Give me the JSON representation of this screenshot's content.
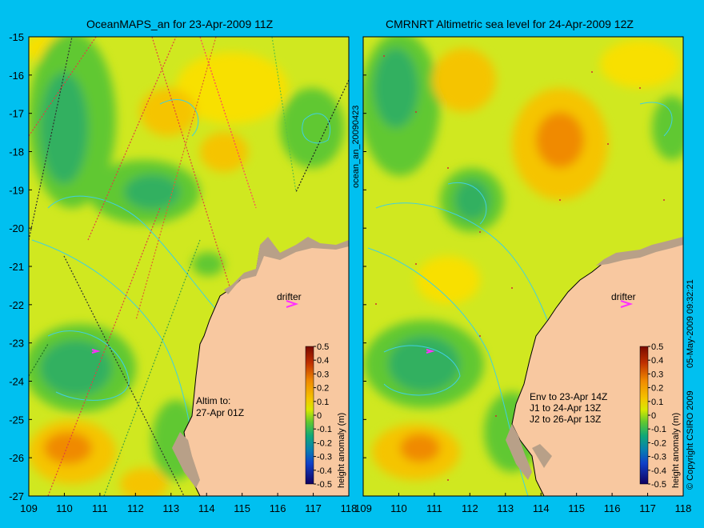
{
  "panels": [
    {
      "title": "OceanMAPS_an for 23-Apr-2009 11Z",
      "side_label": "ocean_an_20090423",
      "annotation": [
        "Altim to:",
        "27-Apr 01Z"
      ],
      "drifter_label": "drifter"
    },
    {
      "title": "CMRNRT Altimetric sea level  for 24-Apr-2009 12Z",
      "side_label": "05-May-2009 09:32:21",
      "annotation": [
        "Env to 23-Apr 14Z",
        "J1 to 24-Apr 13Z",
        "J2 to 26-Apr 13Z"
      ],
      "drifter_label": "drifter"
    }
  ],
  "copyright": "© Copyright CSIRO 2009",
  "colorbar": {
    "label": "height anomaly (m)",
    "ticks": [
      "0.5",
      "0.4",
      "0.3",
      "0.2",
      "0.1",
      "0",
      "-0.1",
      "-0.2",
      "-0.3",
      "-0.4",
      "-0.5"
    ],
    "colors": [
      "#7a0a00",
      "#b02800",
      "#e05000",
      "#f08a00",
      "#f5c400",
      "#d8e800",
      "#90d820",
      "#40c040",
      "#10a878",
      "#0880b0",
      "#1040c8",
      "#202090",
      "#100060"
    ]
  },
  "axes": {
    "lon_ticks": [
      "109",
      "110",
      "111",
      "112",
      "113",
      "114",
      "115",
      "116",
      "117",
      "118"
    ],
    "lat_ticks": [
      "-15",
      "-16",
      "-17",
      "-18",
      "-19",
      "-20",
      "-21",
      "-22",
      "-23",
      "-24",
      "-25",
      "-26",
      "-27"
    ],
    "lon_range": [
      109,
      118
    ],
    "lat_range": [
      -27,
      -15
    ]
  },
  "colors": {
    "background": "#00c0f0",
    "land": "#f8c8a0",
    "mid_level": "#d0e820",
    "positive": "#f5b800",
    "negative": "#40c040",
    "contour": "#40d0e0",
    "drifter": "#ff30ff"
  }
}
